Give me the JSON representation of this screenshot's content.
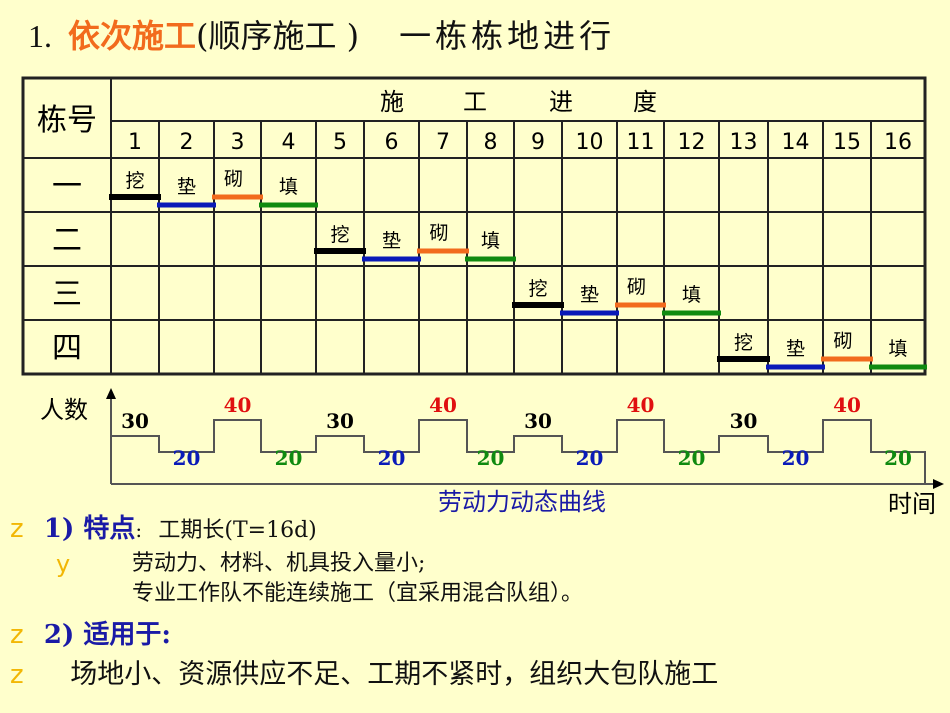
{
  "title": {
    "number": "1.",
    "highlight": "依次施工",
    "paren": "(顺序施工 )",
    "subtitle": "一栋栋地进行",
    "highlight_color": "#f26b1d"
  },
  "table": {
    "row_header": "栋号",
    "group_header": [
      "施",
      "工",
      "进",
      "度"
    ],
    "periods": [
      "1",
      "2",
      "3",
      "4",
      "5",
      "6",
      "7",
      "8",
      "9",
      "10",
      "11",
      "12",
      "13",
      "14",
      "15",
      "16"
    ],
    "rows": [
      {
        "label": "一",
        "start": 1
      },
      {
        "label": "二",
        "start": 5
      },
      {
        "label": "三",
        "start": 9
      },
      {
        "label": "四",
        "start": 13
      }
    ],
    "tasks": [
      {
        "name": "挖",
        "color": "#000000"
      },
      {
        "name": "垫",
        "color": "#0a1ab8"
      },
      {
        "name": "砌",
        "color": "#f26b1d"
      },
      {
        "name": "填",
        "color": "#108a10"
      }
    ]
  },
  "chart_data": {
    "type": "line",
    "title": "劳动力动态曲线",
    "xlabel": "时间",
    "ylabel": "人数",
    "x": [
      1,
      2,
      3,
      4,
      5,
      6,
      7,
      8,
      9,
      10,
      11,
      12,
      13,
      14,
      15,
      16
    ],
    "values": [
      30,
      20,
      40,
      20,
      30,
      20,
      40,
      20,
      30,
      20,
      40,
      20,
      30,
      20,
      40,
      20
    ],
    "label_colors": [
      "#000000",
      "#0a1ab8",
      "#e01010",
      "#108a10",
      "#000000",
      "#0a1ab8",
      "#e01010",
      "#108a10",
      "#000000",
      "#0a1ab8",
      "#e01010",
      "#108a10",
      "#000000",
      "#0a1ab8",
      "#e01010",
      "#108a10"
    ],
    "step": true,
    "grid": false
  },
  "notes": {
    "bullet_main": "z",
    "bullet_sub": "y",
    "point1_label": "1) 特点",
    "point1_colon": ":",
    "point1_text": "工期长(T=16d)",
    "point1_sub1": "劳动力、材料、机具投入量小;",
    "point1_sub2": "专业工作队不能连续施工（宜采用混合队组）。",
    "point2_label": "2) 适用于:",
    "point3_text": "场地小、资源供应不足、工期不紧时，组织大包队施工"
  }
}
